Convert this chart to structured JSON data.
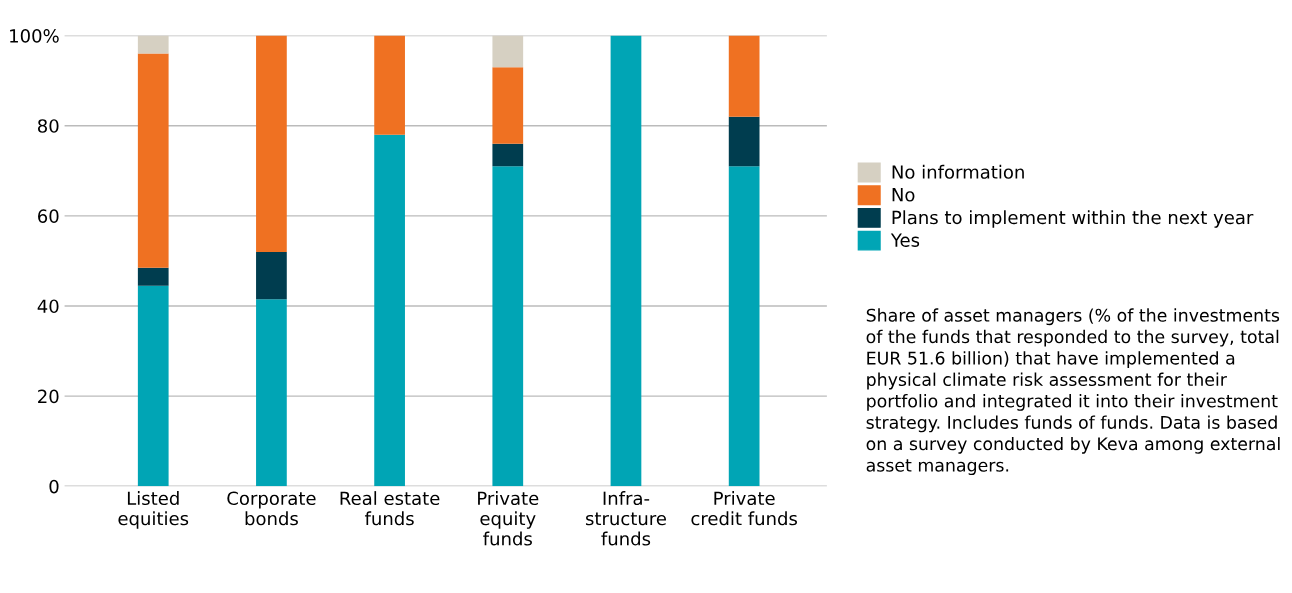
{
  "chart_data": {
    "type": "bar",
    "stacked": true,
    "categories": [
      "Listed\nequities",
      "Corporate\nbonds",
      "Real estate\nfunds",
      "Private\nequity\nfunds",
      "Infra-\nstructure\nfunds",
      "Private\ncredit funds"
    ],
    "series": [
      {
        "name": "Yes",
        "color": "#00a5b5",
        "values": [
          44.5,
          41.5,
          78,
          71,
          100,
          71
        ]
      },
      {
        "name": "Plans to implement within the next year",
        "color": "#003d4f",
        "values": [
          4,
          10.5,
          0,
          5,
          0,
          11
        ]
      },
      {
        "name": "No",
        "color": "#ef7122",
        "values": [
          47.5,
          48,
          22,
          17,
          0,
          18
        ]
      },
      {
        "name": "No information",
        "color": "#d6d0c2",
        "values": [
          4,
          0,
          0,
          7,
          0,
          0
        ]
      }
    ],
    "ylim": [
      0,
      100
    ],
    "yticks": [
      0,
      20,
      40,
      60,
      80,
      {
        "value": 100,
        "label": "100%"
      }
    ],
    "grid": "y",
    "legend": "right",
    "annotations": [
      "Share of asset managers (% of the investments of the funds that responded to the survey, total EUR 51.6 billion) that have implemented a physical climate risk assessment for their portfolio and integrated it into their investment strategy. Includes funds of funds. Data is based on a survey conducted by Keva among external asset managers."
    ]
  }
}
